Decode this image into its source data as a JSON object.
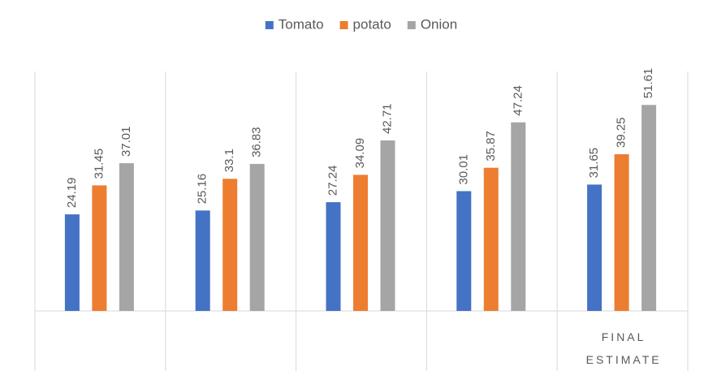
{
  "chart_data": {
    "type": "bar",
    "categories": [
      null,
      null,
      null,
      null,
      "FINAL ESTIMATE"
    ],
    "series": [
      {
        "name": "Tomato",
        "color": "#4472c4",
        "values": [
          24.19,
          25.16,
          27.24,
          30.01,
          31.65
        ]
      },
      {
        "name": "potato",
        "color": "#ed7d31",
        "values": [
          31.45,
          33.1,
          34.09,
          35.87,
          39.25
        ]
      },
      {
        "name": "Onion",
        "color": "#a5a5a5",
        "values": [
          37.01,
          36.83,
          42.71,
          47.24,
          51.61
        ]
      }
    ],
    "ylim": [
      0,
      60
    ],
    "legend": "top"
  }
}
